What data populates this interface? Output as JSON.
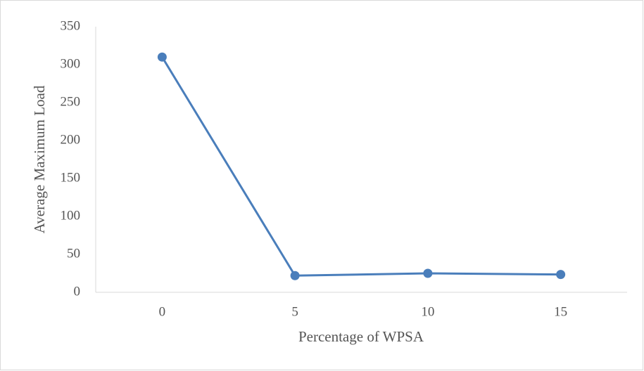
{
  "chart_data": {
    "type": "line",
    "xlabel": "Percentage of WPSA",
    "ylabel": "Average Maximum Load",
    "categories": [
      "0",
      "5",
      "10",
      "15"
    ],
    "series": [
      {
        "name": "Average Maximum Load",
        "color": "#4a7ebb",
        "values": [
          310,
          22,
          25,
          23.5
        ]
      }
    ],
    "ylim": [
      0,
      350
    ],
    "yticks": [
      0,
      50,
      100,
      150,
      200,
      250,
      300,
      350
    ],
    "grid": false,
    "legend": false
  }
}
